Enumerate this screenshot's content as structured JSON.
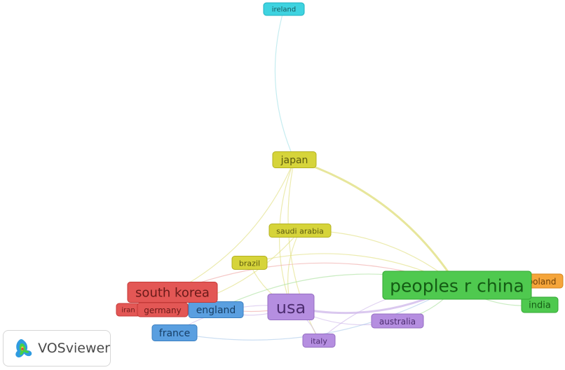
{
  "app": {
    "brand_text": "VOSviewer"
  },
  "network": {
    "nodes": [
      {
        "id": "ireland",
        "label": "ireland",
        "cluster": "cyan"
      },
      {
        "id": "japan",
        "label": "japan",
        "cluster": "yellow"
      },
      {
        "id": "saudi-arabia",
        "label": "saudi arabia",
        "cluster": "yellow"
      },
      {
        "id": "brazil",
        "label": "brazil",
        "cluster": "yellow"
      },
      {
        "id": "south-korea",
        "label": "south korea",
        "cluster": "red"
      },
      {
        "id": "iran",
        "label": "iran",
        "cluster": "red"
      },
      {
        "id": "germany",
        "label": "germany",
        "cluster": "red"
      },
      {
        "id": "england",
        "label": "england",
        "cluster": "blue"
      },
      {
        "id": "france",
        "label": "france",
        "cluster": "blue"
      },
      {
        "id": "usa",
        "label": "usa",
        "cluster": "purple"
      },
      {
        "id": "australia",
        "label": "australia",
        "cluster": "purple"
      },
      {
        "id": "italy",
        "label": "italy",
        "cluster": "purple"
      },
      {
        "id": "peoples-r-china",
        "label": "peoples r china",
        "cluster": "green"
      },
      {
        "id": "india",
        "label": "india",
        "cluster": "green"
      },
      {
        "id": "poland",
        "label": "poland",
        "cluster": "orange"
      }
    ],
    "links": [
      {
        "source": "ireland",
        "target": "japan"
      },
      {
        "source": "japan",
        "target": "peoples-r-china"
      },
      {
        "source": "japan",
        "target": "usa"
      },
      {
        "source": "japan",
        "target": "south-korea"
      },
      {
        "source": "japan",
        "target": "italy"
      },
      {
        "source": "saudi-arabia",
        "target": "peoples-r-china"
      },
      {
        "source": "saudi-arabia",
        "target": "usa"
      },
      {
        "source": "saudi-arabia",
        "target": "germany"
      },
      {
        "source": "brazil",
        "target": "usa"
      },
      {
        "source": "brazil",
        "target": "peoples-r-china"
      },
      {
        "source": "south-korea",
        "target": "usa"
      },
      {
        "source": "south-korea",
        "target": "peoples-r-china"
      },
      {
        "source": "usa",
        "target": "peoples-r-china"
      },
      {
        "source": "usa",
        "target": "england"
      },
      {
        "source": "usa",
        "target": "australia"
      },
      {
        "source": "usa",
        "target": "italy"
      },
      {
        "source": "usa",
        "target": "france"
      },
      {
        "source": "peoples-r-china",
        "target": "australia"
      },
      {
        "source": "peoples-r-china",
        "target": "india"
      },
      {
        "source": "peoples-r-china",
        "target": "poland"
      },
      {
        "source": "peoples-r-china",
        "target": "england"
      },
      {
        "source": "england",
        "target": "germany"
      },
      {
        "source": "france",
        "target": "peoples-r-china"
      },
      {
        "source": "italy",
        "target": "peoples-r-china"
      }
    ],
    "cluster_colors": {
      "cyan": {
        "fill": "#3ed3e0",
        "stroke": "#1fb2c0",
        "text": "#1a5a60",
        "link": "#9fe0e6"
      },
      "yellow": {
        "fill": "#d6d43a",
        "stroke": "#b3b121",
        "text": "#5c5a10",
        "link": "#dfdd7a"
      },
      "red": {
        "fill": "#e35755",
        "stroke": "#c43a38",
        "text": "#6a1a19",
        "link": "#efa4a2"
      },
      "blue": {
        "fill": "#5a9fe0",
        "stroke": "#3c7fc0",
        "text": "#173f66",
        "link": "#a8c8ea"
      },
      "purple": {
        "fill": "#b58ee0",
        "stroke": "#956ec2",
        "text": "#4d2d70",
        "link": "#cdb6ea"
      },
      "green": {
        "fill": "#4fc94f",
        "stroke": "#34a834",
        "text": "#145c14",
        "link": "#a6df9a"
      },
      "orange": {
        "fill": "#f5a53a",
        "stroke": "#d58520",
        "text": "#6e3f08",
        "link": "#f6c88a"
      }
    }
  }
}
